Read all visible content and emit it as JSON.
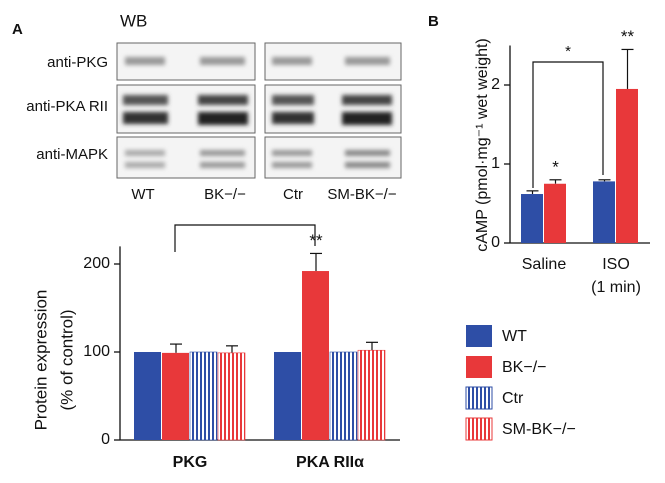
{
  "panel_labels": [
    "A",
    "B"
  ],
  "blot": {
    "title": "WB",
    "rows": [
      "anti-PKG",
      "anti-PKA RII",
      "anti-MAPK"
    ],
    "lanes": [
      "WT",
      "BK−/−",
      "Ctr",
      "SM-BK−/−"
    ]
  },
  "chart_data": [
    {
      "type": "bar",
      "ylabel": [
        "Protein expression",
        "(% of control)"
      ],
      "categories": [
        "PKG",
        "PKA RIIα"
      ],
      "series": [
        {
          "name": "WT",
          "color": "#2e4ea6",
          "hatch": false,
          "values": [
            100,
            100
          ],
          "errors": [
            0,
            0
          ],
          "annotations": [
            null,
            null
          ]
        },
        {
          "name": "BK−/−",
          "color": "#e8383a",
          "hatch": false,
          "values": [
            99,
            192
          ],
          "errors": [
            10,
            20
          ],
          "annotations": [
            null,
            "**"
          ]
        },
        {
          "name": "Ctr",
          "color": "#2e4ea6",
          "hatch": true,
          "values": [
            100,
            100
          ],
          "errors": [
            0,
            0
          ],
          "annotations": [
            null,
            null
          ]
        },
        {
          "name": "SM-BK−/−",
          "color": "#e8383a",
          "hatch": true,
          "values": [
            99,
            102
          ],
          "errors": [
            8,
            9
          ],
          "annotations": [
            null,
            null
          ]
        }
      ],
      "ylim": [
        0,
        220
      ],
      "yticks": [
        0,
        100,
        200
      ],
      "legend": "outside-right"
    },
    {
      "type": "bar",
      "ylabel": "cAMP (pmol·mg⁻¹ wet weight)",
      "categories": [
        "Saline",
        "ISO"
      ],
      "category_sublabels": [
        null,
        "(1 min)"
      ],
      "series": [
        {
          "name": "WT",
          "color": "#2e4ea6",
          "hatch": false,
          "values": [
            0.62,
            0.78
          ],
          "errors": [
            0.04,
            0.02
          ],
          "annotations": [
            null,
            null
          ]
        },
        {
          "name": "BK−/−",
          "color": "#e8383a",
          "hatch": false,
          "values": [
            0.75,
            1.95
          ],
          "errors": [
            0.05,
            0.5
          ],
          "annotations": [
            "*",
            "**"
          ]
        }
      ],
      "bracket_label": "*",
      "ylim": [
        0,
        2.5
      ],
      "yticks": [
        0,
        1,
        2
      ]
    }
  ]
}
